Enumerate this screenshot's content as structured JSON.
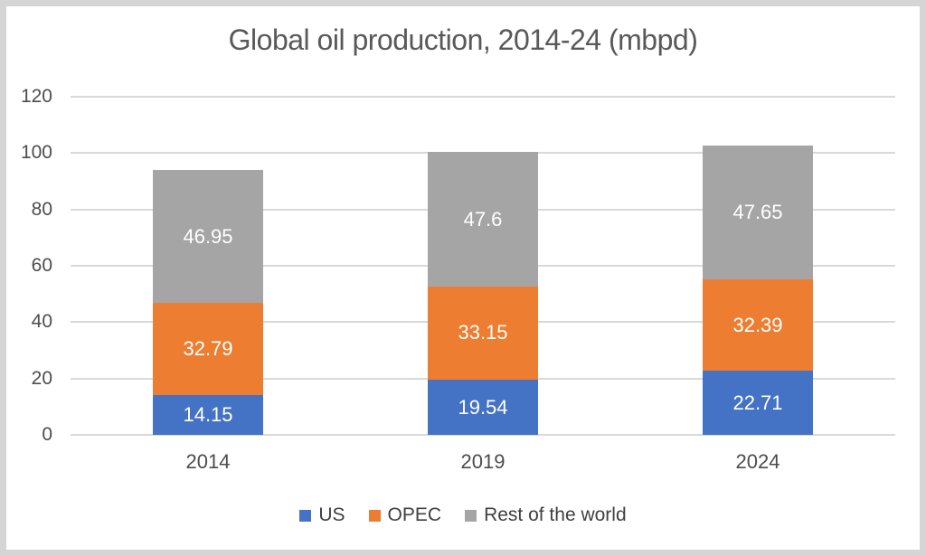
{
  "frame": {
    "border_color": "#d5d5d5",
    "background_color": "#ffffff"
  },
  "chart_data": {
    "type": "bar",
    "stacked": true,
    "title": "Global oil production, 2014-24 (mbpd)",
    "categories": [
      "2014",
      "2019",
      "2024"
    ],
    "series": [
      {
        "name": "US",
        "color": "#4472C4",
        "values": [
          14.15,
          19.54,
          22.71
        ],
        "labels": [
          "14.15",
          "19.54",
          "22.71"
        ]
      },
      {
        "name": "OPEC",
        "color": "#ED7D31",
        "values": [
          32.79,
          33.15,
          32.39
        ],
        "labels": [
          "32.79",
          "33.15",
          "32.39"
        ]
      },
      {
        "name": "Rest of the world",
        "color": "#A5A5A5",
        "values": [
          46.95,
          47.6,
          47.65
        ],
        "labels": [
          "46.95",
          "47.6",
          "47.65"
        ]
      }
    ],
    "totals": [
      93.89,
      100.29,
      102.75
    ],
    "xlabel": "",
    "ylabel": "",
    "y_axis": {
      "min": 0,
      "max": 120,
      "step": 20,
      "ticks": [
        "0",
        "20",
        "40",
        "60",
        "80",
        "100",
        "120"
      ]
    },
    "grid": true,
    "gridline_color": "#d9d9d9",
    "value_label_color": "#ffffff",
    "text_color": "#4d4d4d",
    "title_color": "#595959",
    "legend_position": "bottom"
  }
}
